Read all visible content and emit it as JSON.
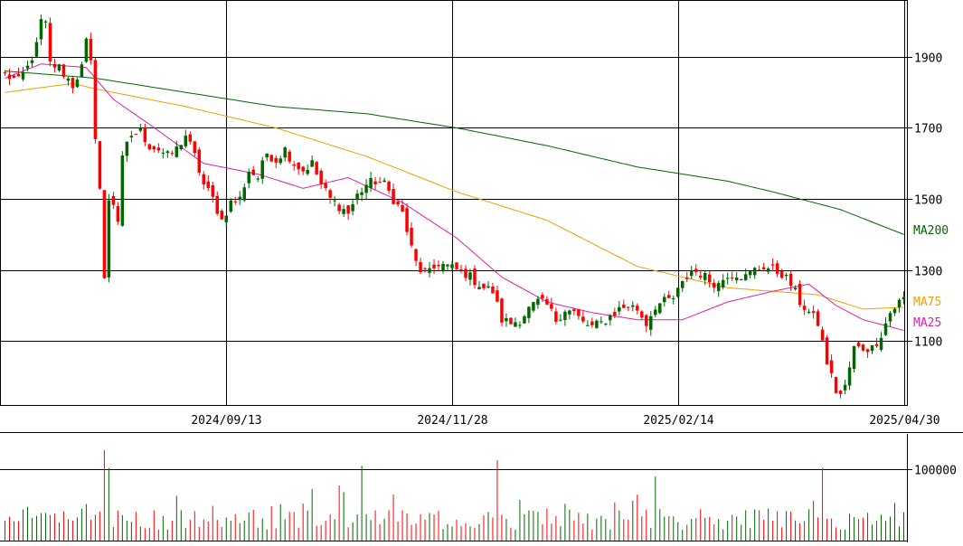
{
  "chart_data": {
    "type": "candlestick",
    "price_panel": {
      "ylim": [
        920,
        2060
      ],
      "y_ticks": [
        1100,
        1300,
        1500,
        1700,
        1900
      ],
      "grid": true
    },
    "date_axis": {
      "x_ticks": [
        {
          "label": "2024/09/13",
          "index": 49
        },
        {
          "label": "2024/11/28",
          "index": 99
        },
        {
          "label": "2025/02/14",
          "index": 149
        },
        {
          "label": "2025/04/30",
          "index": 199
        }
      ]
    },
    "ma_labels": {
      "ma200": {
        "text": "MA200",
        "color": "#006600"
      },
      "ma75": {
        "text": "MA75",
        "color": "#f0a000"
      },
      "ma25": {
        "text": "MA25",
        "color": "#e020a0"
      }
    },
    "colors": {
      "up": "#006600",
      "down": "#ff0000",
      "ma200": "#006600",
      "ma75": "#f0a000",
      "ma25": "#e020a0",
      "grid": "#000000"
    },
    "volume_panel": {
      "ylim": [
        0,
        150000
      ],
      "y_ticks": [
        {
          "value": 100000,
          "label": "100000"
        }
      ]
    },
    "anchors": [
      [
        0,
        1850
      ],
      [
        3,
        1830
      ],
      [
        5,
        1870
      ],
      [
        7,
        1930
      ],
      [
        8,
        2000
      ],
      [
        9,
        1990
      ],
      [
        10,
        1880
      ],
      [
        12,
        1870
      ],
      [
        15,
        1820
      ],
      [
        17,
        1870
      ],
      [
        18,
        1940
      ],
      [
        19,
        1880
      ],
      [
        20,
        1680
      ],
      [
        21,
        1530
      ],
      [
        22,
        1270
      ],
      [
        23,
        1500
      ],
      [
        24,
        1490
      ],
      [
        25,
        1440
      ],
      [
        26,
        1610
      ],
      [
        27,
        1650
      ],
      [
        28,
        1680
      ],
      [
        30,
        1690
      ],
      [
        32,
        1650
      ],
      [
        34,
        1640
      ],
      [
        36,
        1620
      ],
      [
        38,
        1640
      ],
      [
        40,
        1680
      ],
      [
        42,
        1620
      ],
      [
        44,
        1540
      ],
      [
        46,
        1500
      ],
      [
        48,
        1440
      ],
      [
        50,
        1490
      ],
      [
        52,
        1500
      ],
      [
        54,
        1580
      ],
      [
        56,
        1560
      ],
      [
        58,
        1630
      ],
      [
        60,
        1610
      ],
      [
        62,
        1640
      ],
      [
        64,
        1600
      ],
      [
        66,
        1580
      ],
      [
        68,
        1600
      ],
      [
        70,
        1540
      ],
      [
        72,
        1500
      ],
      [
        74,
        1480
      ],
      [
        76,
        1460
      ],
      [
        78,
        1510
      ],
      [
        80,
        1540
      ],
      [
        82,
        1550
      ],
      [
        84,
        1540
      ],
      [
        86,
        1500
      ],
      [
        88,
        1460
      ],
      [
        90,
        1360
      ],
      [
        91,
        1320
      ],
      [
        92,
        1300
      ],
      [
        94,
        1290
      ],
      [
        96,
        1320
      ],
      [
        98,
        1310
      ],
      [
        100,
        1300
      ],
      [
        102,
        1290
      ],
      [
        104,
        1270
      ],
      [
        106,
        1250
      ],
      [
        108,
        1240
      ],
      [
        110,
        1160
      ],
      [
        112,
        1150
      ],
      [
        114,
        1160
      ],
      [
        116,
        1190
      ],
      [
        118,
        1210
      ],
      [
        120,
        1200
      ],
      [
        122,
        1160
      ],
      [
        124,
        1190
      ],
      [
        126,
        1180
      ],
      [
        128,
        1150
      ],
      [
        130,
        1140
      ],
      [
        132,
        1150
      ],
      [
        134,
        1170
      ],
      [
        136,
        1190
      ],
      [
        138,
        1200
      ],
      [
        140,
        1190
      ],
      [
        142,
        1150
      ],
      [
        144,
        1200
      ],
      [
        146,
        1210
      ],
      [
        148,
        1220
      ],
      [
        150,
        1260
      ],
      [
        152,
        1300
      ],
      [
        154,
        1290
      ],
      [
        156,
        1270
      ],
      [
        158,
        1260
      ],
      [
        160,
        1290
      ],
      [
        162,
        1290
      ],
      [
        164,
        1280
      ],
      [
        166,
        1300
      ],
      [
        168,
        1310
      ],
      [
        170,
        1300
      ],
      [
        172,
        1290
      ],
      [
        174,
        1260
      ],
      [
        176,
        1210
      ],
      [
        178,
        1180
      ],
      [
        180,
        1150
      ],
      [
        182,
        1040
      ],
      [
        184,
        960
      ],
      [
        185,
        950
      ],
      [
        186,
        970
      ],
      [
        188,
        1080
      ],
      [
        190,
        1080
      ],
      [
        192,
        1080
      ],
      [
        194,
        1120
      ],
      [
        196,
        1180
      ],
      [
        198,
        1210
      ],
      [
        200,
        1230
      ]
    ],
    "ma_anchors": {
      "ma200": [
        [
          0,
          1860
        ],
        [
          20,
          1840
        ],
        [
          40,
          1800
        ],
        [
          60,
          1760
        ],
        [
          80,
          1740
        ],
        [
          100,
          1700
        ],
        [
          120,
          1650
        ],
        [
          140,
          1590
        ],
        [
          160,
          1550
        ],
        [
          170,
          1520
        ],
        [
          185,
          1470
        ],
        [
          199,
          1400
        ]
      ],
      "ma75": [
        [
          0,
          1800
        ],
        [
          15,
          1825
        ],
        [
          20,
          1810
        ],
        [
          40,
          1760
        ],
        [
          60,
          1700
        ],
        [
          80,
          1620
        ],
        [
          100,
          1520
        ],
        [
          120,
          1440
        ],
        [
          140,
          1310
        ],
        [
          160,
          1250
        ],
        [
          170,
          1240
        ],
        [
          180,
          1230
        ],
        [
          190,
          1190
        ],
        [
          199,
          1195
        ]
      ],
      "ma25": [
        [
          0,
          1840
        ],
        [
          8,
          1880
        ],
        [
          18,
          1870
        ],
        [
          24,
          1780
        ],
        [
          32,
          1710
        ],
        [
          44,
          1600
        ],
        [
          56,
          1570
        ],
        [
          66,
          1530
        ],
        [
          76,
          1560
        ],
        [
          88,
          1490
        ],
        [
          100,
          1390
        ],
        [
          110,
          1280
        ],
        [
          120,
          1210
        ],
        [
          130,
          1180
        ],
        [
          140,
          1160
        ],
        [
          150,
          1160
        ],
        [
          160,
          1210
        ],
        [
          170,
          1240
        ],
        [
          178,
          1260
        ],
        [
          184,
          1200
        ],
        [
          190,
          1160
        ],
        [
          199,
          1130
        ]
      ]
    }
  }
}
